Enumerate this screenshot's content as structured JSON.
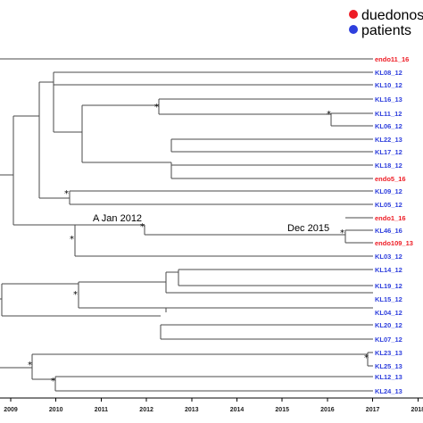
{
  "legend": [
    {
      "label": "duedonos",
      "color": "#ee1c25"
    },
    {
      "label": "patients",
      "color": "#2e3fdd"
    }
  ],
  "colors": {
    "patients": "#2e3fdd",
    "duedonos": "#ee1c25"
  },
  "axis": {
    "ticks": [
      2009,
      2010,
      2011,
      2012,
      2013,
      2014,
      2015,
      2016,
      2017,
      2018
    ]
  },
  "annotations": [
    {
      "text": "A Jan 2012"
    },
    {
      "text": "Dec 2015"
    }
  ],
  "leaves": [
    {
      "label": "endo11_16",
      "group": "duedonos"
    },
    {
      "label": "KL08_12",
      "group": "patients"
    },
    {
      "label": "KL10_12",
      "group": "patients"
    },
    {
      "label": "KL16_13",
      "group": "patients"
    },
    {
      "label": "KL11_12",
      "group": "patients"
    },
    {
      "label": "KL06_12",
      "group": "patients"
    },
    {
      "label": "KL22_13",
      "group": "patients"
    },
    {
      "label": "KL17_12",
      "group": "patients"
    },
    {
      "label": "KL18_12",
      "group": "patients"
    },
    {
      "label": "endo5_16",
      "group": "duedonos"
    },
    {
      "label": "KL09_12",
      "group": "patients"
    },
    {
      "label": "KL05_12",
      "group": "patients"
    },
    {
      "label": "endo1_16",
      "group": "duedonos"
    },
    {
      "label": "KL46_16",
      "group": "patients"
    },
    {
      "label": "endo109_13",
      "group": "duedonos"
    },
    {
      "label": "KL03_12",
      "group": "patients"
    },
    {
      "label": "KL14_12",
      "group": "patients"
    },
    {
      "label": "KL19_12",
      "group": "patients"
    },
    {
      "label": "KL15_12",
      "group": "patients"
    },
    {
      "label": "KL04_12",
      "group": "patients"
    },
    {
      "label": "KL20_12",
      "group": "patients"
    },
    {
      "label": "KL07_12",
      "group": "patients"
    },
    {
      "label": "KL23_13",
      "group": "patients"
    },
    {
      "label": "KL25_13",
      "group": "patients"
    },
    {
      "label": "KL12_13",
      "group": "patients"
    },
    {
      "label": "KL24_13",
      "group": "patients"
    }
  ]
}
